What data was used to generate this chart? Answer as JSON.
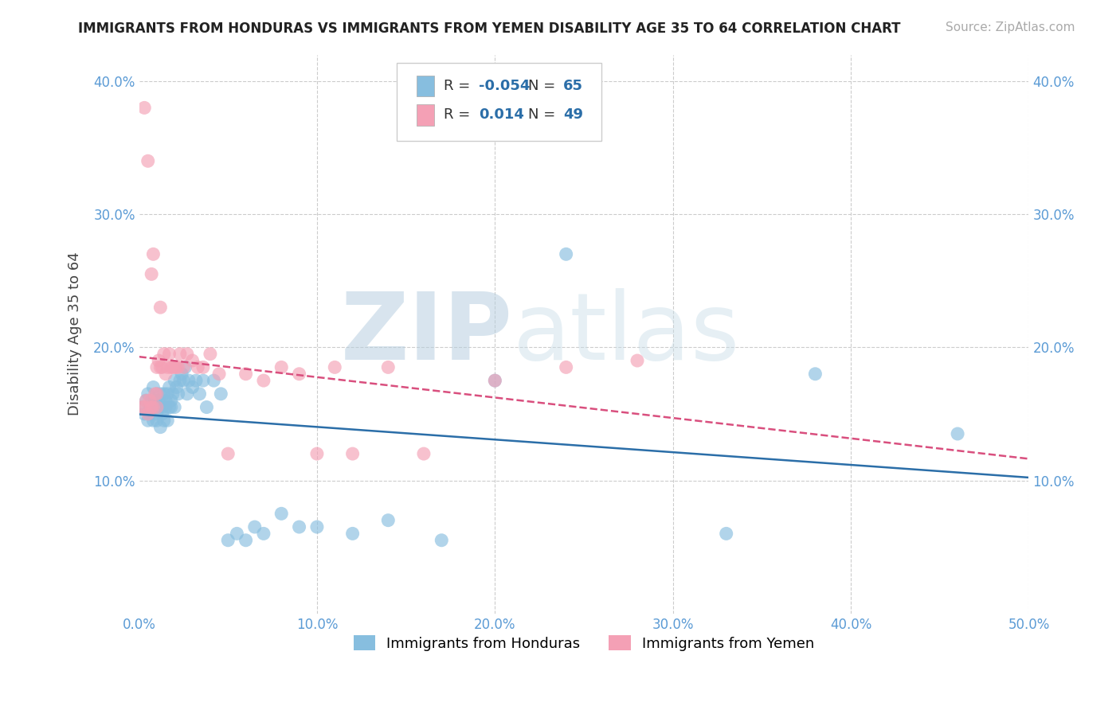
{
  "title": "IMMIGRANTS FROM HONDURAS VS IMMIGRANTS FROM YEMEN DISABILITY AGE 35 TO 64 CORRELATION CHART",
  "source_text": "Source: ZipAtlas.com",
  "ylabel": "Disability Age 35 to 64",
  "xlim": [
    0.0,
    0.5
  ],
  "ylim": [
    0.0,
    0.42
  ],
  "xticks": [
    0.0,
    0.1,
    0.2,
    0.3,
    0.4,
    0.5
  ],
  "xticklabels": [
    "0.0%",
    "10.0%",
    "20.0%",
    "30.0%",
    "40.0%",
    "50.0%"
  ],
  "yticks": [
    0.1,
    0.2,
    0.3,
    0.4
  ],
  "yticklabels": [
    "10.0%",
    "20.0%",
    "30.0%",
    "40.0%"
  ],
  "grid_color": "#cccccc",
  "background_color": "#ffffff",
  "blue_color": "#87BEDF",
  "pink_color": "#F4A0B5",
  "blue_line_color": "#2B6EA8",
  "pink_line_color": "#D94F7E",
  "watermark_zip": "ZIP",
  "watermark_atlas": "atlas",
  "legend_R_blue": "-0.054",
  "legend_N_blue": "65",
  "legend_R_pink": "0.014",
  "legend_N_pink": "49",
  "blue_scatter_x": [
    0.002,
    0.003,
    0.004,
    0.005,
    0.005,
    0.006,
    0.007,
    0.007,
    0.008,
    0.008,
    0.009,
    0.009,
    0.01,
    0.01,
    0.01,
    0.011,
    0.011,
    0.012,
    0.012,
    0.013,
    0.013,
    0.014,
    0.014,
    0.015,
    0.015,
    0.016,
    0.016,
    0.017,
    0.017,
    0.018,
    0.018,
    0.019,
    0.02,
    0.02,
    0.021,
    0.022,
    0.023,
    0.024,
    0.025,
    0.026,
    0.027,
    0.028,
    0.03,
    0.032,
    0.034,
    0.036,
    0.038,
    0.042,
    0.046,
    0.05,
    0.055,
    0.06,
    0.065,
    0.07,
    0.08,
    0.09,
    0.1,
    0.12,
    0.14,
    0.17,
    0.2,
    0.24,
    0.33,
    0.38,
    0.46
  ],
  "blue_scatter_y": [
    0.155,
    0.15,
    0.16,
    0.145,
    0.165,
    0.15,
    0.155,
    0.16,
    0.145,
    0.17,
    0.155,
    0.16,
    0.145,
    0.15,
    0.165,
    0.155,
    0.16,
    0.14,
    0.165,
    0.155,
    0.15,
    0.165,
    0.145,
    0.16,
    0.155,
    0.145,
    0.165,
    0.155,
    0.17,
    0.16,
    0.155,
    0.165,
    0.175,
    0.155,
    0.17,
    0.165,
    0.175,
    0.18,
    0.175,
    0.185,
    0.165,
    0.175,
    0.17,
    0.175,
    0.165,
    0.175,
    0.155,
    0.175,
    0.165,
    0.055,
    0.06,
    0.055,
    0.065,
    0.06,
    0.075,
    0.065,
    0.065,
    0.06,
    0.07,
    0.055,
    0.175,
    0.27,
    0.06,
    0.18,
    0.135
  ],
  "pink_scatter_x": [
    0.002,
    0.003,
    0.004,
    0.005,
    0.006,
    0.007,
    0.008,
    0.009,
    0.01,
    0.01,
    0.011,
    0.012,
    0.013,
    0.014,
    0.015,
    0.016,
    0.017,
    0.018,
    0.019,
    0.02,
    0.021,
    0.022,
    0.023,
    0.025,
    0.027,
    0.03,
    0.033,
    0.036,
    0.04,
    0.045,
    0.05,
    0.06,
    0.07,
    0.08,
    0.09,
    0.1,
    0.11,
    0.12,
    0.14,
    0.16,
    0.2,
    0.24,
    0.28,
    0.003,
    0.005,
    0.007,
    0.008,
    0.01,
    0.012
  ],
  "pink_scatter_y": [
    0.155,
    0.155,
    0.16,
    0.15,
    0.16,
    0.155,
    0.155,
    0.165,
    0.155,
    0.185,
    0.19,
    0.185,
    0.185,
    0.195,
    0.18,
    0.185,
    0.195,
    0.185,
    0.185,
    0.185,
    0.185,
    0.185,
    0.195,
    0.185,
    0.195,
    0.19,
    0.185,
    0.185,
    0.195,
    0.18,
    0.12,
    0.18,
    0.175,
    0.185,
    0.18,
    0.12,
    0.185,
    0.12,
    0.185,
    0.12,
    0.175,
    0.185,
    0.19,
    0.38,
    0.34,
    0.255,
    0.27,
    0.165,
    0.23
  ]
}
